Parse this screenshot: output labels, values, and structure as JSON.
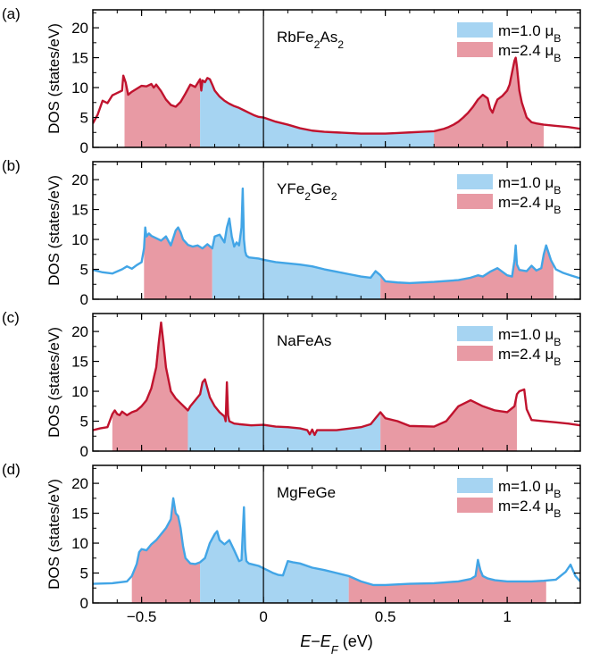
{
  "figure": {
    "xlabel": {
      "pre": "E",
      "dash": "−",
      "mid": "E",
      "sub": "F",
      "unit": " (eV)"
    },
    "ylabel": "DOS (states/eV)",
    "legend": [
      {
        "name": "m=1.0 μ",
        "sub": "B",
        "color": "#a6d4f2"
      },
      {
        "name": "m=2.4 μ",
        "sub": "B",
        "color": "#e89aa4"
      }
    ],
    "colors": {
      "light_fill": "#a6d4f2",
      "light_line": "#42a5e6",
      "dark_fill": "#e89aa4",
      "dark_line": "#c0132e"
    }
  },
  "chart_data": [
    {
      "type": "area",
      "panel_label": "(a)",
      "title_parts": [
        [
          "RbFe",
          ""
        ],
        [
          "2",
          "sub"
        ],
        [
          "As",
          ""
        ],
        [
          "2",
          "sub"
        ]
      ],
      "line": "dark",
      "xlim": [
        -0.7,
        1.3
      ],
      "ylim": [
        0,
        23
      ],
      "xticks": [
        -0.5,
        0,
        0.5,
        1
      ],
      "xticklabels": [
        "−0.5",
        "0",
        "0.5",
        "1"
      ],
      "yticks": [
        0,
        5,
        10,
        15,
        20
      ],
      "yticklabels": [
        "0",
        "5",
        "10",
        "15",
        "20"
      ],
      "shading": [
        {
          "series": "m=2.4 μB",
          "from": -0.57,
          "to": -0.26
        },
        {
          "series": "m=1.0 μB",
          "from": -0.26,
          "to": 0.7
        },
        {
          "series": "m=2.4 μB",
          "from": 0.7,
          "to": 1.15
        }
      ],
      "x": [
        -0.7,
        -0.68,
        -0.66,
        -0.64,
        -0.62,
        -0.6,
        -0.58,
        -0.575,
        -0.565,
        -0.555,
        -0.54,
        -0.52,
        -0.5,
        -0.48,
        -0.46,
        -0.45,
        -0.44,
        -0.42,
        -0.4,
        -0.38,
        -0.36,
        -0.34,
        -0.32,
        -0.3,
        -0.28,
        -0.26,
        -0.255,
        -0.25,
        -0.24,
        -0.23,
        -0.22,
        -0.21,
        -0.2,
        -0.18,
        -0.16,
        -0.14,
        -0.12,
        -0.1,
        -0.08,
        -0.06,
        -0.04,
        -0.02,
        0,
        0.05,
        0.1,
        0.15,
        0.2,
        0.25,
        0.3,
        0.35,
        0.4,
        0.45,
        0.5,
        0.55,
        0.6,
        0.65,
        0.7,
        0.72,
        0.74,
        0.76,
        0.78,
        0.8,
        0.82,
        0.84,
        0.86,
        0.88,
        0.9,
        0.92,
        0.93,
        0.94,
        0.95,
        0.96,
        0.98,
        1.0,
        1.01,
        1.02,
        1.03,
        1.035,
        1.04,
        1.05,
        1.06,
        1.08,
        1.1,
        1.12,
        1.15,
        1.2,
        1.25,
        1.3
      ],
      "y": [
        4.0,
        5.5,
        7.8,
        7.4,
        8.7,
        9.1,
        9.5,
        12.0,
        10.8,
        8.8,
        9.3,
        9.8,
        10.3,
        10.2,
        10.6,
        10.0,
        10.5,
        9.4,
        8.0,
        7.1,
        6.8,
        7.6,
        9.0,
        10.5,
        10.1,
        11.4,
        9.5,
        11.2,
        10.9,
        11.6,
        11.4,
        10.5,
        9.5,
        8.5,
        7.8,
        7.3,
        6.9,
        6.6,
        6.2,
        5.8,
        5.4,
        5.1,
        5.0,
        4.3,
        3.8,
        3.2,
        2.8,
        2.6,
        2.5,
        2.4,
        2.3,
        2.3,
        2.3,
        2.4,
        2.5,
        2.6,
        2.7,
        2.9,
        3.1,
        3.4,
        3.8,
        4.3,
        5.0,
        5.8,
        6.8,
        8.0,
        8.8,
        8.2,
        6.5,
        5.8,
        7.0,
        8.0,
        8.6,
        9.5,
        10.5,
        12.5,
        14.5,
        15.0,
        13.5,
        9.5,
        7.5,
        5.0,
        4.2,
        4.0,
        3.8,
        3.6,
        3.4,
        3.1
      ]
    },
    {
      "type": "area",
      "panel_label": "(b)",
      "title_parts": [
        [
          "YFe",
          ""
        ],
        [
          "2",
          "sub"
        ],
        [
          "Ge",
          ""
        ],
        [
          "2",
          "sub"
        ]
      ],
      "line": "light",
      "xlim": [
        -0.7,
        1.3
      ],
      "ylim": [
        0,
        23
      ],
      "xticks": [
        -0.5,
        0,
        0.5,
        1
      ],
      "xticklabels": [
        "−0.5",
        "0",
        "0.5",
        "1"
      ],
      "yticks": [
        0,
        5,
        10,
        15,
        20
      ],
      "yticklabels": [
        "0",
        "5",
        "10",
        "15",
        "20"
      ],
      "shading": [
        {
          "series": "m=2.4 μB",
          "from": -0.49,
          "to": -0.21
        },
        {
          "series": "m=1.0 μB",
          "from": -0.21,
          "to": 0.48
        },
        {
          "series": "m=2.4 μB",
          "from": 0.48,
          "to": 1.19
        }
      ],
      "x": [
        -0.7,
        -0.66,
        -0.62,
        -0.58,
        -0.56,
        -0.54,
        -0.52,
        -0.5,
        -0.49,
        -0.485,
        -0.48,
        -0.47,
        -0.46,
        -0.44,
        -0.42,
        -0.4,
        -0.38,
        -0.36,
        -0.35,
        -0.34,
        -0.33,
        -0.31,
        -0.29,
        -0.27,
        -0.25,
        -0.23,
        -0.21,
        -0.2,
        -0.18,
        -0.16,
        -0.15,
        -0.14,
        -0.13,
        -0.12,
        -0.11,
        -0.1,
        -0.09,
        -0.085,
        -0.08,
        -0.075,
        -0.07,
        -0.06,
        -0.04,
        -0.02,
        0,
        0.05,
        0.1,
        0.15,
        0.2,
        0.25,
        0.3,
        0.35,
        0.4,
        0.44,
        0.46,
        0.48,
        0.5,
        0.55,
        0.6,
        0.7,
        0.8,
        0.85,
        0.88,
        0.9,
        0.93,
        0.96,
        1.0,
        1.02,
        1.03,
        1.035,
        1.04,
        1.05,
        1.08,
        1.1,
        1.12,
        1.14,
        1.15,
        1.16,
        1.18,
        1.2,
        1.23,
        1.26,
        1.3
      ],
      "y": [
        4.9,
        4.5,
        4.3,
        5.0,
        5.5,
        5.1,
        5.7,
        6.2,
        8.5,
        12.0,
        10.5,
        11.0,
        10.6,
        10.2,
        9.8,
        10.5,
        9.0,
        11.5,
        12.0,
        11.2,
        10.0,
        9.1,
        8.8,
        9.0,
        8.5,
        9.2,
        8.5,
        10.5,
        10.8,
        9.5,
        12.0,
        13.5,
        10.5,
        8.8,
        9.5,
        9.0,
        12.0,
        18.5,
        10.0,
        8.0,
        7.3,
        7.0,
        6.9,
        6.8,
        6.6,
        6.2,
        6.0,
        5.8,
        5.5,
        5.0,
        4.6,
        4.2,
        3.8,
        3.6,
        4.7,
        4.0,
        3.0,
        2.8,
        2.7,
        2.9,
        3.2,
        3.6,
        4.0,
        3.8,
        4.6,
        5.2,
        4.0,
        3.8,
        6.5,
        9.0,
        5.8,
        4.9,
        4.7,
        5.6,
        4.8,
        5.2,
        7.5,
        9.0,
        6.5,
        5.0,
        4.4,
        4.0,
        3.5
      ]
    },
    {
      "type": "area",
      "panel_label": "(c)",
      "title_parts": [
        [
          "NaFeAs",
          ""
        ]
      ],
      "line": "dark",
      "xlim": [
        -0.7,
        1.3
      ],
      "ylim": [
        0,
        23
      ],
      "xticks": [
        -0.5,
        0,
        0.5,
        1
      ],
      "xticklabels": [
        "−0.5",
        "0",
        "0.5",
        "1"
      ],
      "yticks": [
        0,
        5,
        10,
        15,
        20
      ],
      "yticklabels": [
        "0",
        "5",
        "10",
        "15",
        "20"
      ],
      "shading": [
        {
          "series": "m=2.4 μB",
          "from": -0.62,
          "to": -0.31
        },
        {
          "series": "m=1.0 μB",
          "from": -0.31,
          "to": 0.48
        },
        {
          "series": "m=2.4 μB",
          "from": 0.48,
          "to": 1.04
        }
      ],
      "x": [
        -0.7,
        -0.67,
        -0.64,
        -0.62,
        -0.61,
        -0.6,
        -0.59,
        -0.58,
        -0.56,
        -0.54,
        -0.52,
        -0.5,
        -0.48,
        -0.46,
        -0.44,
        -0.43,
        -0.42,
        -0.41,
        -0.4,
        -0.38,
        -0.36,
        -0.34,
        -0.32,
        -0.31,
        -0.3,
        -0.28,
        -0.26,
        -0.25,
        -0.24,
        -0.23,
        -0.22,
        -0.2,
        -0.18,
        -0.16,
        -0.155,
        -0.15,
        -0.145,
        -0.14,
        -0.12,
        -0.1,
        -0.05,
        0,
        0.05,
        0.1,
        0.15,
        0.18,
        0.19,
        0.2,
        0.21,
        0.22,
        0.3,
        0.4,
        0.44,
        0.46,
        0.48,
        0.5,
        0.55,
        0.6,
        0.7,
        0.75,
        0.8,
        0.85,
        0.9,
        0.95,
        1.0,
        1.03,
        1.04,
        1.05,
        1.07,
        1.08,
        1.1,
        1.15,
        1.2,
        1.25,
        1.3
      ],
      "y": [
        3.5,
        3.8,
        4.0,
        6.2,
        6.8,
        6.2,
        6.0,
        6.6,
        6.0,
        6.5,
        6.8,
        7.5,
        8.5,
        10.5,
        14.0,
        18.0,
        21.5,
        18.0,
        14.0,
        10.0,
        8.8,
        8.0,
        7.2,
        6.8,
        7.5,
        8.5,
        9.5,
        11.5,
        12.0,
        10.5,
        9.0,
        7.5,
        6.5,
        5.8,
        5.0,
        11.5,
        6.0,
        5.0,
        4.6,
        4.5,
        4.3,
        4.4,
        4.1,
        4.0,
        3.8,
        3.5,
        2.8,
        3.6,
        2.7,
        3.5,
        3.5,
        4.0,
        4.5,
        5.5,
        6.5,
        5.5,
        5.0,
        4.2,
        4.1,
        5.0,
        7.5,
        8.5,
        7.5,
        6.8,
        6.5,
        7.5,
        9.5,
        10.0,
        10.3,
        7.0,
        5.2,
        5.0,
        4.8,
        4.6,
        4.3
      ]
    },
    {
      "type": "area",
      "panel_label": "(d)",
      "title_parts": [
        [
          "MgFeGe",
          ""
        ]
      ],
      "line": "light",
      "xlim": [
        -0.7,
        1.3
      ],
      "ylim": [
        0,
        23
      ],
      "xticks": [
        -0.5,
        0,
        0.5,
        1
      ],
      "xticklabels": [
        "−0.5",
        "0",
        "0.5",
        "1"
      ],
      "yticks": [
        0,
        5,
        10,
        15,
        20
      ],
      "yticklabels": [
        "0",
        "5",
        "10",
        "15",
        "20"
      ],
      "shading": [
        {
          "series": "m=2.4 μB",
          "from": -0.54,
          "to": -0.26
        },
        {
          "series": "m=1.0 μB",
          "from": -0.26,
          "to": 0.35
        },
        {
          "series": "m=2.4 μB",
          "from": 0.35,
          "to": 1.16
        }
      ],
      "x": [
        -0.7,
        -0.62,
        -0.56,
        -0.54,
        -0.52,
        -0.51,
        -0.5,
        -0.48,
        -0.46,
        -0.44,
        -0.42,
        -0.4,
        -0.38,
        -0.37,
        -0.36,
        -0.35,
        -0.34,
        -0.33,
        -0.32,
        -0.3,
        -0.28,
        -0.26,
        -0.24,
        -0.22,
        -0.2,
        -0.19,
        -0.18,
        -0.16,
        -0.14,
        -0.12,
        -0.1,
        -0.09,
        -0.08,
        -0.075,
        -0.07,
        -0.06,
        -0.04,
        -0.02,
        0,
        0.02,
        0.04,
        0.06,
        0.08,
        0.1,
        0.12,
        0.15,
        0.2,
        0.25,
        0.3,
        0.35,
        0.4,
        0.45,
        0.5,
        0.6,
        0.7,
        0.8,
        0.85,
        0.87,
        0.88,
        0.89,
        0.9,
        0.92,
        0.95,
        1.0,
        1.05,
        1.1,
        1.15,
        1.2,
        1.24,
        1.26,
        1.28,
        1.3
      ],
      "y": [
        3.2,
        3.3,
        3.6,
        4.5,
        6.5,
        8.5,
        9.0,
        8.8,
        9.8,
        10.5,
        11.5,
        12.5,
        14.0,
        17.5,
        15.0,
        14.5,
        12.5,
        9.5,
        7.5,
        6.6,
        6.5,
        6.8,
        7.5,
        10.0,
        11.5,
        12.0,
        10.5,
        9.8,
        10.5,
        8.8,
        7.0,
        7.2,
        16.0,
        9.0,
        7.0,
        6.6,
        6.4,
        6.2,
        5.8,
        5.4,
        5.0,
        4.7,
        4.6,
        7.0,
        6.8,
        6.6,
        5.9,
        5.5,
        5.0,
        4.5,
        3.6,
        3.0,
        3.0,
        3.2,
        3.3,
        3.6,
        4.0,
        4.5,
        7.2,
        5.5,
        4.5,
        4.1,
        3.8,
        3.6,
        3.6,
        3.6,
        3.7,
        3.9,
        5.2,
        6.4,
        4.5,
        3.6
      ]
    }
  ]
}
